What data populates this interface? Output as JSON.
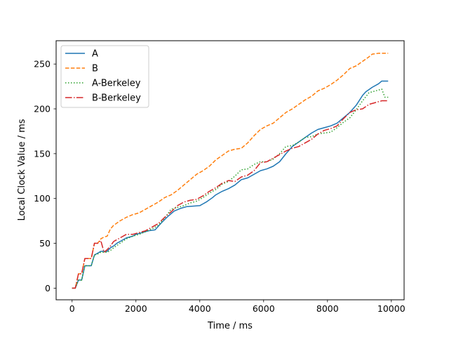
{
  "chart_data": {
    "type": "line",
    "title": "",
    "xlabel": "Time / ms",
    "ylabel": "Local Clock Value / ms",
    "xlim": [
      -500,
      10400
    ],
    "ylim": [
      -13,
      276
    ],
    "xticks": [
      0,
      2000,
      4000,
      6000,
      8000,
      10000
    ],
    "yticks": [
      0,
      50,
      100,
      150,
      200,
      250
    ],
    "grid": false,
    "legend_position": "upper left",
    "series": [
      {
        "name": "A",
        "color": "#1f77b4",
        "style": "solid",
        "points": [
          [
            0,
            0
          ],
          [
            100,
            0
          ],
          [
            200,
            9
          ],
          [
            300,
            9
          ],
          [
            400,
            25
          ],
          [
            500,
            25
          ],
          [
            600,
            25
          ],
          [
            700,
            37
          ],
          [
            800,
            39
          ],
          [
            900,
            41
          ],
          [
            1000,
            41
          ],
          [
            1100,
            41
          ],
          [
            1200,
            45
          ],
          [
            1300,
            47
          ],
          [
            1400,
            50
          ],
          [
            1500,
            52
          ],
          [
            1700,
            56
          ],
          [
            1900,
            58
          ],
          [
            2000,
            60
          ],
          [
            2200,
            62
          ],
          [
            2400,
            64
          ],
          [
            2600,
            65
          ],
          [
            2800,
            73
          ],
          [
            3000,
            80
          ],
          [
            3200,
            86
          ],
          [
            3400,
            89
          ],
          [
            3600,
            91
          ],
          [
            4000,
            92
          ],
          [
            4100,
            94
          ],
          [
            4200,
            96
          ],
          [
            4400,
            101
          ],
          [
            4500,
            104
          ],
          [
            4700,
            108
          ],
          [
            4900,
            111
          ],
          [
            5100,
            115
          ],
          [
            5300,
            121
          ],
          [
            5500,
            123
          ],
          [
            5700,
            127
          ],
          [
            5900,
            131
          ],
          [
            6100,
            133
          ],
          [
            6300,
            136
          ],
          [
            6500,
            141
          ],
          [
            6700,
            150
          ],
          [
            6900,
            158
          ],
          [
            7100,
            163
          ],
          [
            7300,
            168
          ],
          [
            7500,
            173
          ],
          [
            7700,
            177
          ],
          [
            7900,
            179
          ],
          [
            8100,
            181
          ],
          [
            8300,
            184
          ],
          [
            8500,
            190
          ],
          [
            8700,
            196
          ],
          [
            8900,
            204
          ],
          [
            9100,
            215
          ],
          [
            9200,
            219
          ],
          [
            9400,
            224
          ],
          [
            9600,
            228
          ],
          [
            9700,
            231
          ],
          [
            9900,
            231
          ]
        ]
      },
      {
        "name": "B",
        "color": "#ff7f0e",
        "style": "dashed",
        "points": [
          [
            0,
            0
          ],
          [
            100,
            0
          ],
          [
            200,
            16
          ],
          [
            300,
            16
          ],
          [
            400,
            33
          ],
          [
            600,
            33
          ],
          [
            700,
            50
          ],
          [
            800,
            50
          ],
          [
            900,
            55
          ],
          [
            1000,
            57
          ],
          [
            1100,
            58
          ],
          [
            1200,
            66
          ],
          [
            1300,
            70
          ],
          [
            1500,
            75
          ],
          [
            1700,
            79
          ],
          [
            1900,
            82
          ],
          [
            2100,
            84
          ],
          [
            2300,
            88
          ],
          [
            2500,
            92
          ],
          [
            2700,
            96
          ],
          [
            2900,
            101
          ],
          [
            3100,
            104
          ],
          [
            3300,
            109
          ],
          [
            3500,
            115
          ],
          [
            3700,
            121
          ],
          [
            3900,
            127
          ],
          [
            4100,
            131
          ],
          [
            4300,
            136
          ],
          [
            4500,
            143
          ],
          [
            4700,
            148
          ],
          [
            4900,
            153
          ],
          [
            5100,
            155
          ],
          [
            5300,
            156
          ],
          [
            5500,
            162
          ],
          [
            5700,
            170
          ],
          [
            5900,
            177
          ],
          [
            6100,
            181
          ],
          [
            6300,
            184
          ],
          [
            6500,
            190
          ],
          [
            6700,
            196
          ],
          [
            6900,
            200
          ],
          [
            7100,
            205
          ],
          [
            7300,
            210
          ],
          [
            7500,
            214
          ],
          [
            7700,
            220
          ],
          [
            7900,
            223
          ],
          [
            8100,
            227
          ],
          [
            8300,
            232
          ],
          [
            8500,
            238
          ],
          [
            8700,
            245
          ],
          [
            8900,
            248
          ],
          [
            9100,
            253
          ],
          [
            9300,
            258
          ],
          [
            9400,
            261
          ],
          [
            9600,
            262
          ],
          [
            9900,
            262
          ]
        ]
      },
      {
        "name": "A-Berkeley",
        "color": "#2ca02c",
        "style": "dotted",
        "points": [
          [
            0,
            0
          ],
          [
            100,
            0
          ],
          [
            200,
            9
          ],
          [
            300,
            9
          ],
          [
            400,
            25
          ],
          [
            600,
            25
          ],
          [
            700,
            37
          ],
          [
            800,
            38
          ],
          [
            900,
            40
          ],
          [
            1000,
            40
          ],
          [
            1100,
            40
          ],
          [
            1200,
            42
          ],
          [
            1300,
            45
          ],
          [
            1500,
            50
          ],
          [
            1700,
            55
          ],
          [
            1900,
            58
          ],
          [
            2100,
            60
          ],
          [
            2300,
            63
          ],
          [
            2500,
            66
          ],
          [
            2700,
            70
          ],
          [
            2900,
            78
          ],
          [
            3100,
            88
          ],
          [
            3300,
            90
          ],
          [
            3500,
            92
          ],
          [
            3700,
            95
          ],
          [
            3900,
            97
          ],
          [
            4100,
            101
          ],
          [
            4300,
            106
          ],
          [
            4500,
            110
          ],
          [
            4700,
            116
          ],
          [
            4900,
            119
          ],
          [
            5100,
            125
          ],
          [
            5300,
            132
          ],
          [
            5500,
            133
          ],
          [
            5700,
            138
          ],
          [
            5900,
            141
          ],
          [
            6100,
            141
          ],
          [
            6300,
            144
          ],
          [
            6500,
            150
          ],
          [
            6700,
            158
          ],
          [
            6900,
            159
          ],
          [
            7100,
            163
          ],
          [
            7300,
            168
          ],
          [
            7500,
            169
          ],
          [
            7700,
            172
          ],
          [
            7900,
            173
          ],
          [
            8100,
            174
          ],
          [
            8300,
            179
          ],
          [
            8500,
            185
          ],
          [
            8700,
            190
          ],
          [
            8900,
            199
          ],
          [
            9100,
            209
          ],
          [
            9300,
            218
          ],
          [
            9500,
            220
          ],
          [
            9700,
            222
          ],
          [
            9800,
            213
          ],
          [
            9900,
            213
          ]
        ]
      },
      {
        "name": "B-Berkeley",
        "color": "#d62728",
        "style": "dashdot",
        "points": [
          [
            0,
            0
          ],
          [
            100,
            0
          ],
          [
            200,
            16
          ],
          [
            300,
            16
          ],
          [
            400,
            33
          ],
          [
            600,
            33
          ],
          [
            700,
            50
          ],
          [
            800,
            50
          ],
          [
            900,
            53
          ],
          [
            1000,
            40
          ],
          [
            1100,
            43
          ],
          [
            1200,
            47
          ],
          [
            1300,
            52
          ],
          [
            1500,
            56
          ],
          [
            1700,
            60
          ],
          [
            1900,
            60
          ],
          [
            2100,
            62
          ],
          [
            2300,
            64
          ],
          [
            2500,
            68
          ],
          [
            2700,
            72
          ],
          [
            2900,
            79
          ],
          [
            3100,
            85
          ],
          [
            3300,
            92
          ],
          [
            3500,
            96
          ],
          [
            3700,
            98
          ],
          [
            3900,
            99
          ],
          [
            4100,
            103
          ],
          [
            4300,
            108
          ],
          [
            4500,
            112
          ],
          [
            4700,
            117
          ],
          [
            4900,
            120
          ],
          [
            5100,
            119
          ],
          [
            5300,
            124
          ],
          [
            5500,
            126
          ],
          [
            5700,
            131
          ],
          [
            5900,
            140
          ],
          [
            6100,
            141
          ],
          [
            6300,
            145
          ],
          [
            6500,
            149
          ],
          [
            6700,
            153
          ],
          [
            6900,
            156
          ],
          [
            7100,
            158
          ],
          [
            7300,
            162
          ],
          [
            7500,
            166
          ],
          [
            7700,
            172
          ],
          [
            7900,
            176
          ],
          [
            8100,
            178
          ],
          [
            8300,
            181
          ],
          [
            8500,
            189
          ],
          [
            8700,
            196
          ],
          [
            8900,
            199
          ],
          [
            9100,
            200
          ],
          [
            9300,
            205
          ],
          [
            9500,
            207
          ],
          [
            9700,
            209
          ],
          [
            9900,
            209
          ]
        ]
      }
    ]
  }
}
